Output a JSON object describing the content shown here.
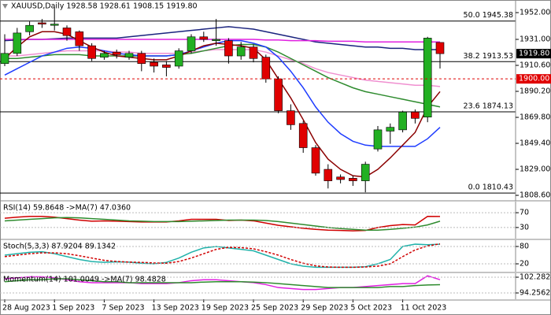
{
  "chart_data": [
    {
      "type": "candlestick",
      "title": "XAUUSD,Daily  1928.58 1928.61 1908.15 1919.80",
      "categories": [
        "28 Aug 2023",
        null,
        null,
        null,
        "1 Sep 2023",
        null,
        null,
        null,
        "7 Sep 2023",
        null,
        null,
        null,
        "13 Sep 2023",
        null,
        null,
        null,
        "19 Sep 2023",
        null,
        null,
        null,
        "25 Sep 2023",
        null,
        null,
        null,
        "29 Sep 2023",
        null,
        null,
        null,
        "5 Oct 2023",
        null,
        null,
        null,
        "11 Oct 2023",
        null,
        null,
        null
      ],
      "open": [
        1912,
        1920,
        1937,
        1944,
        1942,
        1940,
        1937,
        1926,
        1917,
        1921,
        1917,
        1920,
        1913,
        1911,
        1910,
        1922,
        1933,
        1930,
        1930,
        1918,
        1925,
        1917,
        1900,
        1875,
        1865,
        1846,
        1829,
        1823,
        1822,
        1820,
        1845,
        1859,
        1860,
        1874,
        1870,
        1928.58
      ],
      "high": [
        1935,
        1940,
        1945,
        1947,
        1956,
        1942,
        1938,
        1928,
        1922,
        1923,
        1922,
        1922,
        1916,
        1914,
        1924,
        1935,
        1937,
        1947,
        1932,
        1929,
        1927,
        1919,
        1902,
        1880,
        1867,
        1848,
        1833,
        1825,
        1824,
        1835,
        1863,
        1865,
        1875,
        1876,
        1933,
        1928.61
      ],
      "low": [
        1910,
        1918,
        1934,
        1940,
        1938,
        1930,
        1922,
        1914,
        1915,
        1916,
        1915,
        1906,
        1905,
        1902,
        1908,
        1920,
        1929,
        1926,
        1912,
        1915,
        1913,
        1897,
        1873,
        1860,
        1842,
        1824,
        1814,
        1818,
        1816,
        1811,
        1843,
        1849,
        1858,
        1865,
        1866,
        1908.15
      ],
      "close": [
        1920,
        1936,
        1942,
        1943,
        1943,
        1934,
        1926,
        1916,
        1920,
        1919,
        1920,
        1912,
        1910,
        1909,
        1922,
        1933,
        1931,
        1931,
        1918,
        1925,
        1916,
        1900,
        1875,
        1864,
        1846,
        1826,
        1820,
        1821,
        1820,
        1833,
        1860,
        1862,
        1874,
        1869,
        1932,
        1919.8
      ],
      "up_color": "#22b022",
      "down_color": "#e00000",
      "series": [
        {
          "color": "#1a237e",
          "values": [
            1930,
            1930.5,
            1931,
            1931,
            1931.5,
            1932,
            1932,
            1932,
            1932,
            1932,
            1933,
            1934,
            1935,
            1936,
            1937,
            1938,
            1939,
            1940,
            1941,
            1940,
            1939,
            1937,
            1935,
            1933,
            1931,
            1929,
            1928,
            1927,
            1926,
            1925,
            1925,
            1924,
            1924,
            1923,
            1923,
            1923
          ]
        },
        {
          "color": "#e020e0",
          "values": [
            1931,
            1931,
            1931,
            1931,
            1931,
            1931,
            1931,
            1931,
            1931,
            1931,
            1931,
            1931,
            1931,
            1931,
            1931,
            1931,
            1931,
            1931,
            1931,
            1931,
            1931,
            1930.5,
            1930.5,
            1930,
            1930,
            1930,
            1929.5,
            1929.5,
            1929.5,
            1929,
            1929,
            1929,
            1929,
            1929,
            1929,
            1929
          ]
        },
        {
          "color": "#f090d0",
          "values": [
            1918,
            1918,
            1919,
            1920,
            1921,
            1922,
            1922,
            1922,
            1922,
            1921,
            1921,
            1920,
            1920,
            1920,
            1920,
            1921,
            1922,
            1923,
            1923,
            1923,
            1923,
            1921,
            1918,
            1915,
            1912,
            1908,
            1905,
            1903,
            1901,
            1899,
            1898,
            1897,
            1896,
            1895,
            1895,
            1894
          ]
        },
        {
          "color": "#2e8b2e",
          "values": [
            1916,
            1916,
            1917,
            1918,
            1919,
            1919,
            1919,
            1918,
            1918,
            1918,
            1918,
            1918,
            1918,
            1918,
            1919,
            1920,
            1922,
            1924,
            1926,
            1927,
            1927,
            1925,
            1921,
            1916,
            1911,
            1906,
            1901,
            1897,
            1893,
            1890,
            1888,
            1886,
            1884,
            1882,
            1880,
            1878
          ]
        },
        {
          "color": "#1e3cff",
          "values": [
            1903,
            1908,
            1913,
            1918,
            1921,
            1924,
            1925,
            1924,
            1922,
            1920,
            1919,
            1918,
            1918,
            1918,
            1919,
            1922,
            1925,
            1928,
            1930,
            1930,
            1928,
            1925,
            1917,
            1906,
            1893,
            1878,
            1866,
            1857,
            1851,
            1848,
            1847,
            1847,
            1847,
            1847,
            1853,
            1862
          ]
        },
        {
          "color": "#8b0000",
          "values": [
            1916,
            1925,
            1933,
            1937,
            1937,
            1935,
            1930,
            1925,
            1921,
            1918,
            1917,
            1916,
            1915,
            1915,
            1918,
            1922,
            1926,
            1928,
            1927,
            1926,
            1924,
            1915,
            1900,
            1885,
            1868,
            1850,
            1837,
            1829,
            1824,
            1823,
            1829,
            1838,
            1848,
            1858,
            1878,
            1890
          ]
        }
      ],
      "levels": [
        {
          "value": 1945.38,
          "label": "50.0 1945.38"
        },
        {
          "value": 1913.53,
          "label": "38.2 1913.53"
        },
        {
          "value": 1874.13,
          "label": "23.6 1874.13"
        },
        {
          "value": 1810.43,
          "label": "0.0 1810.43"
        }
      ],
      "price_tags": [
        {
          "value": 1919.8,
          "label": "1919.80",
          "color": "#000000"
        },
        {
          "value": 1900.0,
          "label": "1900.00",
          "color": "#e00000"
        }
      ],
      "ylim": [
        1804.3,
        1961.9
      ],
      "yticks": [
        {
          "value": 1952,
          "label": "1952.00"
        },
        {
          "value": 1931,
          "label": "1931.00"
        },
        {
          "value": 1910.6,
          "label": "1910.60"
        },
        {
          "value": 1890.2,
          "label": "1890.20"
        },
        {
          "value": 1869.8,
          "label": "1869.80"
        },
        {
          "value": 1849.4,
          "label": "1849.40"
        },
        {
          "value": 1829,
          "label": "1829.00"
        },
        {
          "value": 1808.6,
          "label": "1808.60"
        }
      ]
    },
    {
      "type": "line",
      "title": "RSI(14) 59.8648 ->MA(7) 47.0360",
      "series": [
        {
          "color": "#d00000",
          "values": [
            55,
            58,
            60,
            60,
            58,
            54,
            50,
            47,
            48,
            47,
            46,
            45,
            45,
            45,
            48,
            52,
            52,
            52,
            49,
            50,
            48,
            42,
            36,
            32,
            28,
            25,
            23,
            22,
            21,
            22,
            30,
            35,
            38,
            37,
            60,
            59.8648
          ]
        },
        {
          "color": "#2e8b2e",
          "values": [
            48,
            50,
            52,
            54,
            56,
            57,
            56,
            54,
            52,
            50,
            48,
            47,
            46,
            46,
            46,
            47,
            48,
            49,
            50,
            50,
            50,
            49,
            46,
            42,
            38,
            34,
            30,
            27,
            25,
            23,
            23,
            25,
            28,
            31,
            37,
            47.036
          ]
        }
      ],
      "ylim": [
        0,
        100
      ],
      "yticks": [
        70,
        30
      ]
    },
    {
      "type": "line",
      "title": "Stoch(5,3,3) 87.9204 89.1342",
      "series": [
        {
          "color": "#20b2aa",
          "values": [
            50,
            55,
            60,
            62,
            55,
            45,
            35,
            28,
            25,
            27,
            26,
            22,
            20,
            25,
            40,
            60,
            75,
            80,
            75,
            70,
            65,
            50,
            35,
            20,
            12,
            8,
            8,
            8,
            8,
            10,
            20,
            35,
            80,
            88,
            86,
            87.9204
          ]
        },
        {
          "color": "#d00000",
          "dash": true,
          "values": [
            45,
            50,
            55,
            58,
            58,
            55,
            48,
            40,
            32,
            28,
            26,
            25,
            23,
            22,
            28,
            40,
            55,
            70,
            77,
            76,
            72,
            62,
            50,
            35,
            22,
            13,
            9,
            8,
            8,
            9,
            12,
            20,
            45,
            68,
            82,
            89.1342
          ]
        }
      ],
      "ylim": [
        -7.2,
        101.8
      ],
      "yticks": [
        80,
        20
      ]
    },
    {
      "type": "line",
      "title": "Momentum(14) 101.0049 ->MA(7) 98.4828",
      "series": [
        {
          "color": "#e020e0",
          "values": [
            101.5,
            102,
            102.5,
            102.5,
            102,
            101,
            100,
            99.5,
            99.5,
            99.5,
            99.5,
            99,
            99,
            99,
            99.5,
            100.5,
            101,
            101,
            100.5,
            100,
            99.5,
            98.5,
            97,
            96.5,
            96,
            96,
            96.5,
            97,
            97,
            97.5,
            98,
            98.5,
            99,
            99,
            103,
            101.0049
          ]
        },
        {
          "color": "#2e8b2e",
          "values": [
            100,
            100.5,
            101,
            101,
            101.5,
            101.5,
            101,
            100.5,
            100,
            100,
            99.5,
            99.5,
            99.5,
            99.5,
            99.5,
            99.5,
            99.8,
            100,
            100,
            100,
            99.8,
            99.5,
            99,
            98.5,
            98,
            97.5,
            97,
            97,
            97,
            97,
            97,
            97.5,
            97.5,
            98,
            98.3,
            98.4828
          ]
        }
      ],
      "ylim": [
        91.05,
        104.29
      ],
      "yticks": [
        {
          "value": 102.2824,
          "label": "102.2824"
        },
        {
          "value": 94.2562,
          "label": "94.2562"
        }
      ]
    }
  ]
}
